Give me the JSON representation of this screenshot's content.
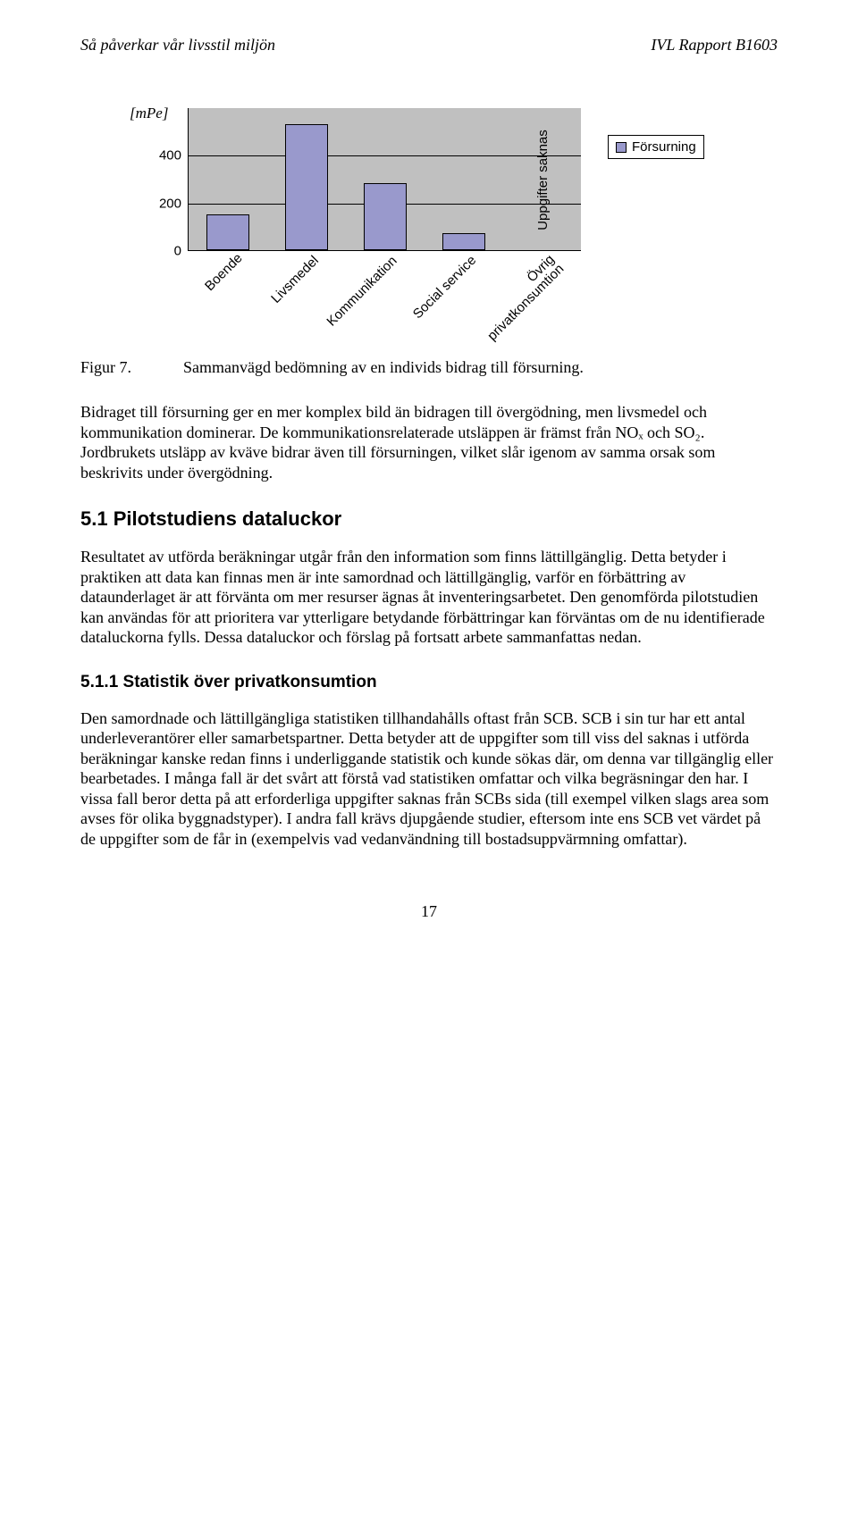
{
  "header": {
    "left": "Så påverkar vår livsstil miljön",
    "right": "IVL Rapport B1603"
  },
  "chart": {
    "type": "bar",
    "y_axis_title": "[mPe]",
    "y_labels": [
      "0",
      "200",
      "400"
    ],
    "y_max": 600,
    "y_ticks": [
      0,
      200,
      400
    ],
    "categories": [
      "Boende",
      "Livsmedel",
      "Kommunikation",
      "Social service",
      "Övrig\nprivatkonsumtion"
    ],
    "values": [
      150,
      530,
      280,
      70,
      0
    ],
    "bar_color": "#9999cc",
    "plot_bg": "#c0c0c0",
    "grid_color": "#000000",
    "legend_label": "Försurning",
    "annotation": "Uppgifter saknas",
    "annotation_bar_index": 4
  },
  "figure_caption": {
    "label": "Figur 7.",
    "text": "Sammanvägd bedömning av en individs bidrag till försurning."
  },
  "para1": "Bidraget till försurning ger en mer komplex bild än bidragen till övergödning, men livsmedel och kommunikation dominerar. De kommunikationsrelaterade utsläppen är främst från NOₓ och SO₂. Jordbrukets utsläpp av kväve bidrar även till försurningen, vilket slår igenom av samma orsak som beskrivits under övergödning.",
  "section51_title": "5.1  Pilotstudiens dataluckor",
  "para2": "Resultatet av utförda beräkningar utgår från den information som finns lättillgänglig. Detta betyder i praktiken att data kan finnas men är inte samordnad och lättillgänglig, varför en förbättring av dataunderlaget är att förvänta om mer resurser ägnas åt inventeringsarbetet. Den genomförda pilotstudien kan användas för att prioritera var ytterligare betydande förbättringar kan förväntas om de nu identifierade dataluckorna fylls. Dessa dataluckor och förslag på fortsatt arbete sammanfattas nedan.",
  "section511_title": "5.1.1  Statistik över privatkonsumtion",
  "para3": "Den samordnade och lättillgängliga statistiken tillhandahålls oftast från SCB. SCB i sin tur har ett antal underleverantörer eller samarbetspartner. Detta betyder att de uppgifter som till viss del saknas i utförda beräkningar kanske redan finns i underliggande statistik och kunde sökas där, om denna var tillgänglig eller bearbetades. I många fall är det svårt att förstå vad statistiken omfattar och vilka begräsningar den har. I vissa fall beror detta på att erforderliga uppgifter saknas från SCBs sida (till exempel vilken slags area som avses för olika byggnadstyper). I andra fall krävs djupgående studier, eftersom inte ens SCB vet värdet på de uppgifter som de får in (exempelvis vad vedanvändning till bostadsuppvärmning omfattar).",
  "page_number": "17"
}
